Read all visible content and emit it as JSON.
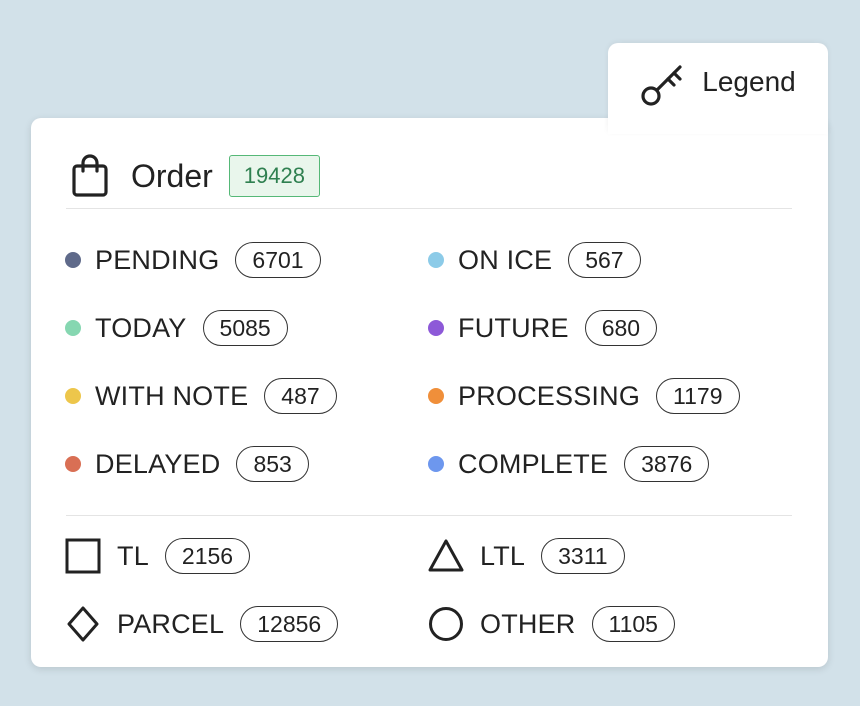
{
  "legend_tab": {
    "label": "Legend",
    "icon": "key-icon"
  },
  "order": {
    "label": "Order",
    "count": "19428",
    "icon": "shopping-bag-icon",
    "badge_color": "#55b877"
  },
  "statuses": [
    {
      "label": "PENDING",
      "count": "6701",
      "color": "#5f6a8a"
    },
    {
      "label": "ON ICE",
      "count": "567",
      "color": "#8ccbe8"
    },
    {
      "label": "TODAY",
      "count": "5085",
      "color": "#86d7b1"
    },
    {
      "label": "FUTURE",
      "count": "680",
      "color": "#8d59d8"
    },
    {
      "label": "WITH NOTE",
      "count": "487",
      "color": "#edc64b"
    },
    {
      "label": "PROCESSING",
      "count": "1179",
      "color": "#f08f3a"
    },
    {
      "label": "DELAYED",
      "count": "853",
      "color": "#d96f54"
    },
    {
      "label": "COMPLETE",
      "count": "3876",
      "color": "#6d97ee"
    }
  ],
  "shipment_types": [
    {
      "label": "TL",
      "count": "2156",
      "icon": "square-icon"
    },
    {
      "label": "LTL",
      "count": "3311",
      "icon": "triangle-icon"
    },
    {
      "label": "PARCEL",
      "count": "12856",
      "icon": "diamond-icon"
    },
    {
      "label": "OTHER",
      "count": "1105",
      "icon": "circle-icon"
    }
  ]
}
